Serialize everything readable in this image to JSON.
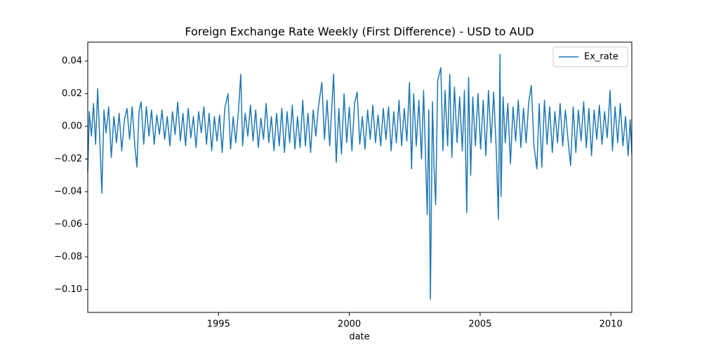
{
  "chart_data": {
    "type": "line",
    "title": "Foreign Exchange Rate Weekly (First Difference) - USD to AUD",
    "x_label": "date",
    "xlim": [
      1990.0,
      2010.8
    ],
    "xticks": [
      1995,
      2000,
      2005,
      2010
    ],
    "ylim": [
      -0.114,
      0.0516
    ],
    "yticks": [
      {
        "value": -0.1,
        "label": "−0.10"
      },
      {
        "value": -0.08,
        "label": "−0.08"
      },
      {
        "value": -0.06,
        "label": "−0.06"
      },
      {
        "value": -0.04,
        "label": "−0.04"
      },
      {
        "value": -0.02,
        "label": "−0.02"
      },
      {
        "value": 0,
        "label": "0.00"
      },
      0.02,
      0.04
    ],
    "legend": "upper right",
    "x": [
      1990.0,
      1990.06,
      1990.14,
      1990.22,
      1990.3,
      1990.38,
      1990.46,
      1990.54,
      1990.62,
      1990.7,
      1990.8,
      1990.9,
      1991.0,
      1991.1,
      1991.2,
      1991.3,
      1991.4,
      1991.5,
      1991.6,
      1991.7,
      1991.8,
      1991.88,
      1991.96,
      1992.04,
      1992.14,
      1992.24,
      1992.34,
      1992.44,
      1992.54,
      1992.64,
      1992.74,
      1992.84,
      1992.94,
      1993.04,
      1993.14,
      1993.24,
      1993.34,
      1993.44,
      1993.54,
      1993.64,
      1993.74,
      1993.84,
      1993.94,
      1994.04,
      1994.14,
      1994.24,
      1994.34,
      1994.44,
      1994.54,
      1994.64,
      1994.74,
      1994.84,
      1994.94,
      1995.04,
      1995.14,
      1995.24,
      1995.36,
      1995.46,
      1995.56,
      1995.66,
      1995.76,
      1995.85,
      1995.92,
      1996.02,
      1996.12,
      1996.22,
      1996.32,
      1996.42,
      1996.52,
      1996.62,
      1996.72,
      1996.82,
      1996.92,
      1997.02,
      1997.12,
      1997.22,
      1997.32,
      1997.42,
      1997.52,
      1997.62,
      1997.72,
      1997.82,
      1997.92,
      1998.02,
      1998.12,
      1998.22,
      1998.32,
      1998.42,
      1998.52,
      1998.62,
      1998.72,
      1998.82,
      1998.95,
      1999.05,
      1999.15,
      1999.25,
      1999.4,
      1999.5,
      1999.6,
      1999.7,
      1999.8,
      1999.9,
      2000.0,
      2000.1,
      2000.2,
      2000.3,
      2000.4,
      2000.5,
      2000.6,
      2000.7,
      2000.8,
      2000.9,
      2001.0,
      2001.1,
      2001.2,
      2001.3,
      2001.4,
      2001.5,
      2001.6,
      2001.7,
      2001.8,
      2001.9,
      2002.0,
      2002.1,
      2002.2,
      2002.3,
      2002.38,
      2002.46,
      2002.56,
      2002.66,
      2002.76,
      2002.84,
      2002.98,
      2003.04,
      2003.1,
      2003.18,
      2003.24,
      2003.3,
      2003.38,
      2003.5,
      2003.58,
      2003.66,
      2003.76,
      2003.84,
      2003.92,
      2004.02,
      2004.12,
      2004.22,
      2004.32,
      2004.4,
      2004.49,
      2004.56,
      2004.64,
      2004.72,
      2004.82,
      2004.92,
      2005.02,
      2005.12,
      2005.22,
      2005.32,
      2005.42,
      2005.52,
      2005.62,
      2005.7,
      2005.76,
      2005.8,
      2005.88,
      2005.96,
      2006.06,
      2006.16,
      2006.26,
      2006.36,
      2006.46,
      2006.56,
      2006.66,
      2006.76,
      2006.86,
      2006.96,
      2007.06,
      2007.17,
      2007.26,
      2007.36,
      2007.46,
      2007.56,
      2007.66,
      2007.76,
      2007.86,
      2007.96,
      2008.06,
      2008.16,
      2008.26,
      2008.36,
      2008.46,
      2008.56,
      2008.66,
      2008.76,
      2008.86,
      2008.96,
      2009.06,
      2009.16,
      2009.26,
      2009.36,
      2009.46,
      2009.56,
      2009.66,
      2009.76,
      2009.86,
      2009.97,
      2010.06,
      2010.16,
      2010.26,
      2010.36,
      2010.46,
      2010.56,
      2010.66,
      2010.74,
      2010.8
    ],
    "series": [
      {
        "name": "Ex_rate",
        "color": "#1f77b4",
        "values": [
          -0.028,
          0.009,
          -0.006,
          0.014,
          -0.011,
          0.023,
          -0.008,
          -0.041,
          0.01,
          -0.004,
          0.012,
          -0.019,
          0.006,
          -0.01,
          0.008,
          -0.015,
          0.004,
          0.011,
          -0.008,
          0.012,
          -0.012,
          -0.025,
          0.009,
          0.015,
          -0.011,
          0.012,
          -0.006,
          0.01,
          -0.011,
          0.007,
          -0.005,
          0.01,
          -0.008,
          0.006,
          -0.012,
          0.009,
          -0.005,
          0.015,
          -0.009,
          0.008,
          -0.012,
          0.011,
          -0.007,
          0.006,
          -0.013,
          0.009,
          -0.004,
          0.012,
          -0.011,
          0.008,
          -0.015,
          0.006,
          -0.009,
          0.007,
          -0.016,
          0.011,
          0.02,
          -0.014,
          0.006,
          -0.01,
          0.009,
          0.032,
          -0.012,
          0.008,
          -0.006,
          0.013,
          -0.009,
          0.01,
          -0.013,
          0.005,
          -0.008,
          0.014,
          -0.01,
          0.006,
          -0.015,
          0.008,
          -0.012,
          0.011,
          -0.016,
          0.009,
          -0.01,
          0.013,
          -0.014,
          0.006,
          -0.013,
          0.016,
          -0.012,
          0.008,
          -0.016,
          0.01,
          -0.006,
          0.012,
          0.027,
          -0.008,
          0.016,
          -0.012,
          0.032,
          -0.022,
          0.011,
          -0.017,
          0.02,
          -0.01,
          0.012,
          -0.015,
          0.014,
          0.021,
          -0.011,
          0.006,
          -0.014,
          0.01,
          -0.008,
          0.013,
          -0.01,
          0.007,
          -0.012,
          0.011,
          -0.008,
          0.012,
          -0.015,
          0.009,
          -0.01,
          0.016,
          -0.012,
          0.011,
          -0.009,
          0.027,
          -0.026,
          0.02,
          -0.012,
          0.016,
          -0.02,
          0.022,
          -0.054,
          0.01,
          -0.106,
          0.015,
          -0.025,
          -0.048,
          0.028,
          0.036,
          -0.015,
          0.022,
          -0.012,
          0.032,
          -0.019,
          0.024,
          -0.01,
          0.018,
          -0.015,
          0.022,
          -0.053,
          0.03,
          -0.03,
          0.018,
          -0.012,
          0.02,
          -0.014,
          0.016,
          -0.018,
          0.022,
          -0.01,
          0.021,
          -0.015,
          -0.057,
          0.044,
          -0.043,
          0.018,
          -0.01,
          0.014,
          -0.023,
          0.012,
          -0.009,
          0.016,
          -0.013,
          0.011,
          -0.01,
          0.015,
          0.025,
          -0.012,
          -0.026,
          0.014,
          -0.025,
          0.016,
          -0.011,
          0.012,
          -0.016,
          0.009,
          -0.01,
          0.014,
          -0.012,
          0.01,
          -0.008,
          -0.024,
          0.012,
          -0.016,
          0.01,
          -0.009,
          0.015,
          -0.013,
          0.011,
          -0.018,
          0.01,
          -0.008,
          0.013,
          -0.011,
          0.009,
          -0.007,
          0.022,
          -0.015,
          0.012,
          -0.01,
          0.014,
          -0.012,
          0.006,
          -0.018,
          0.004,
          -0.017
        ]
      }
    ]
  }
}
